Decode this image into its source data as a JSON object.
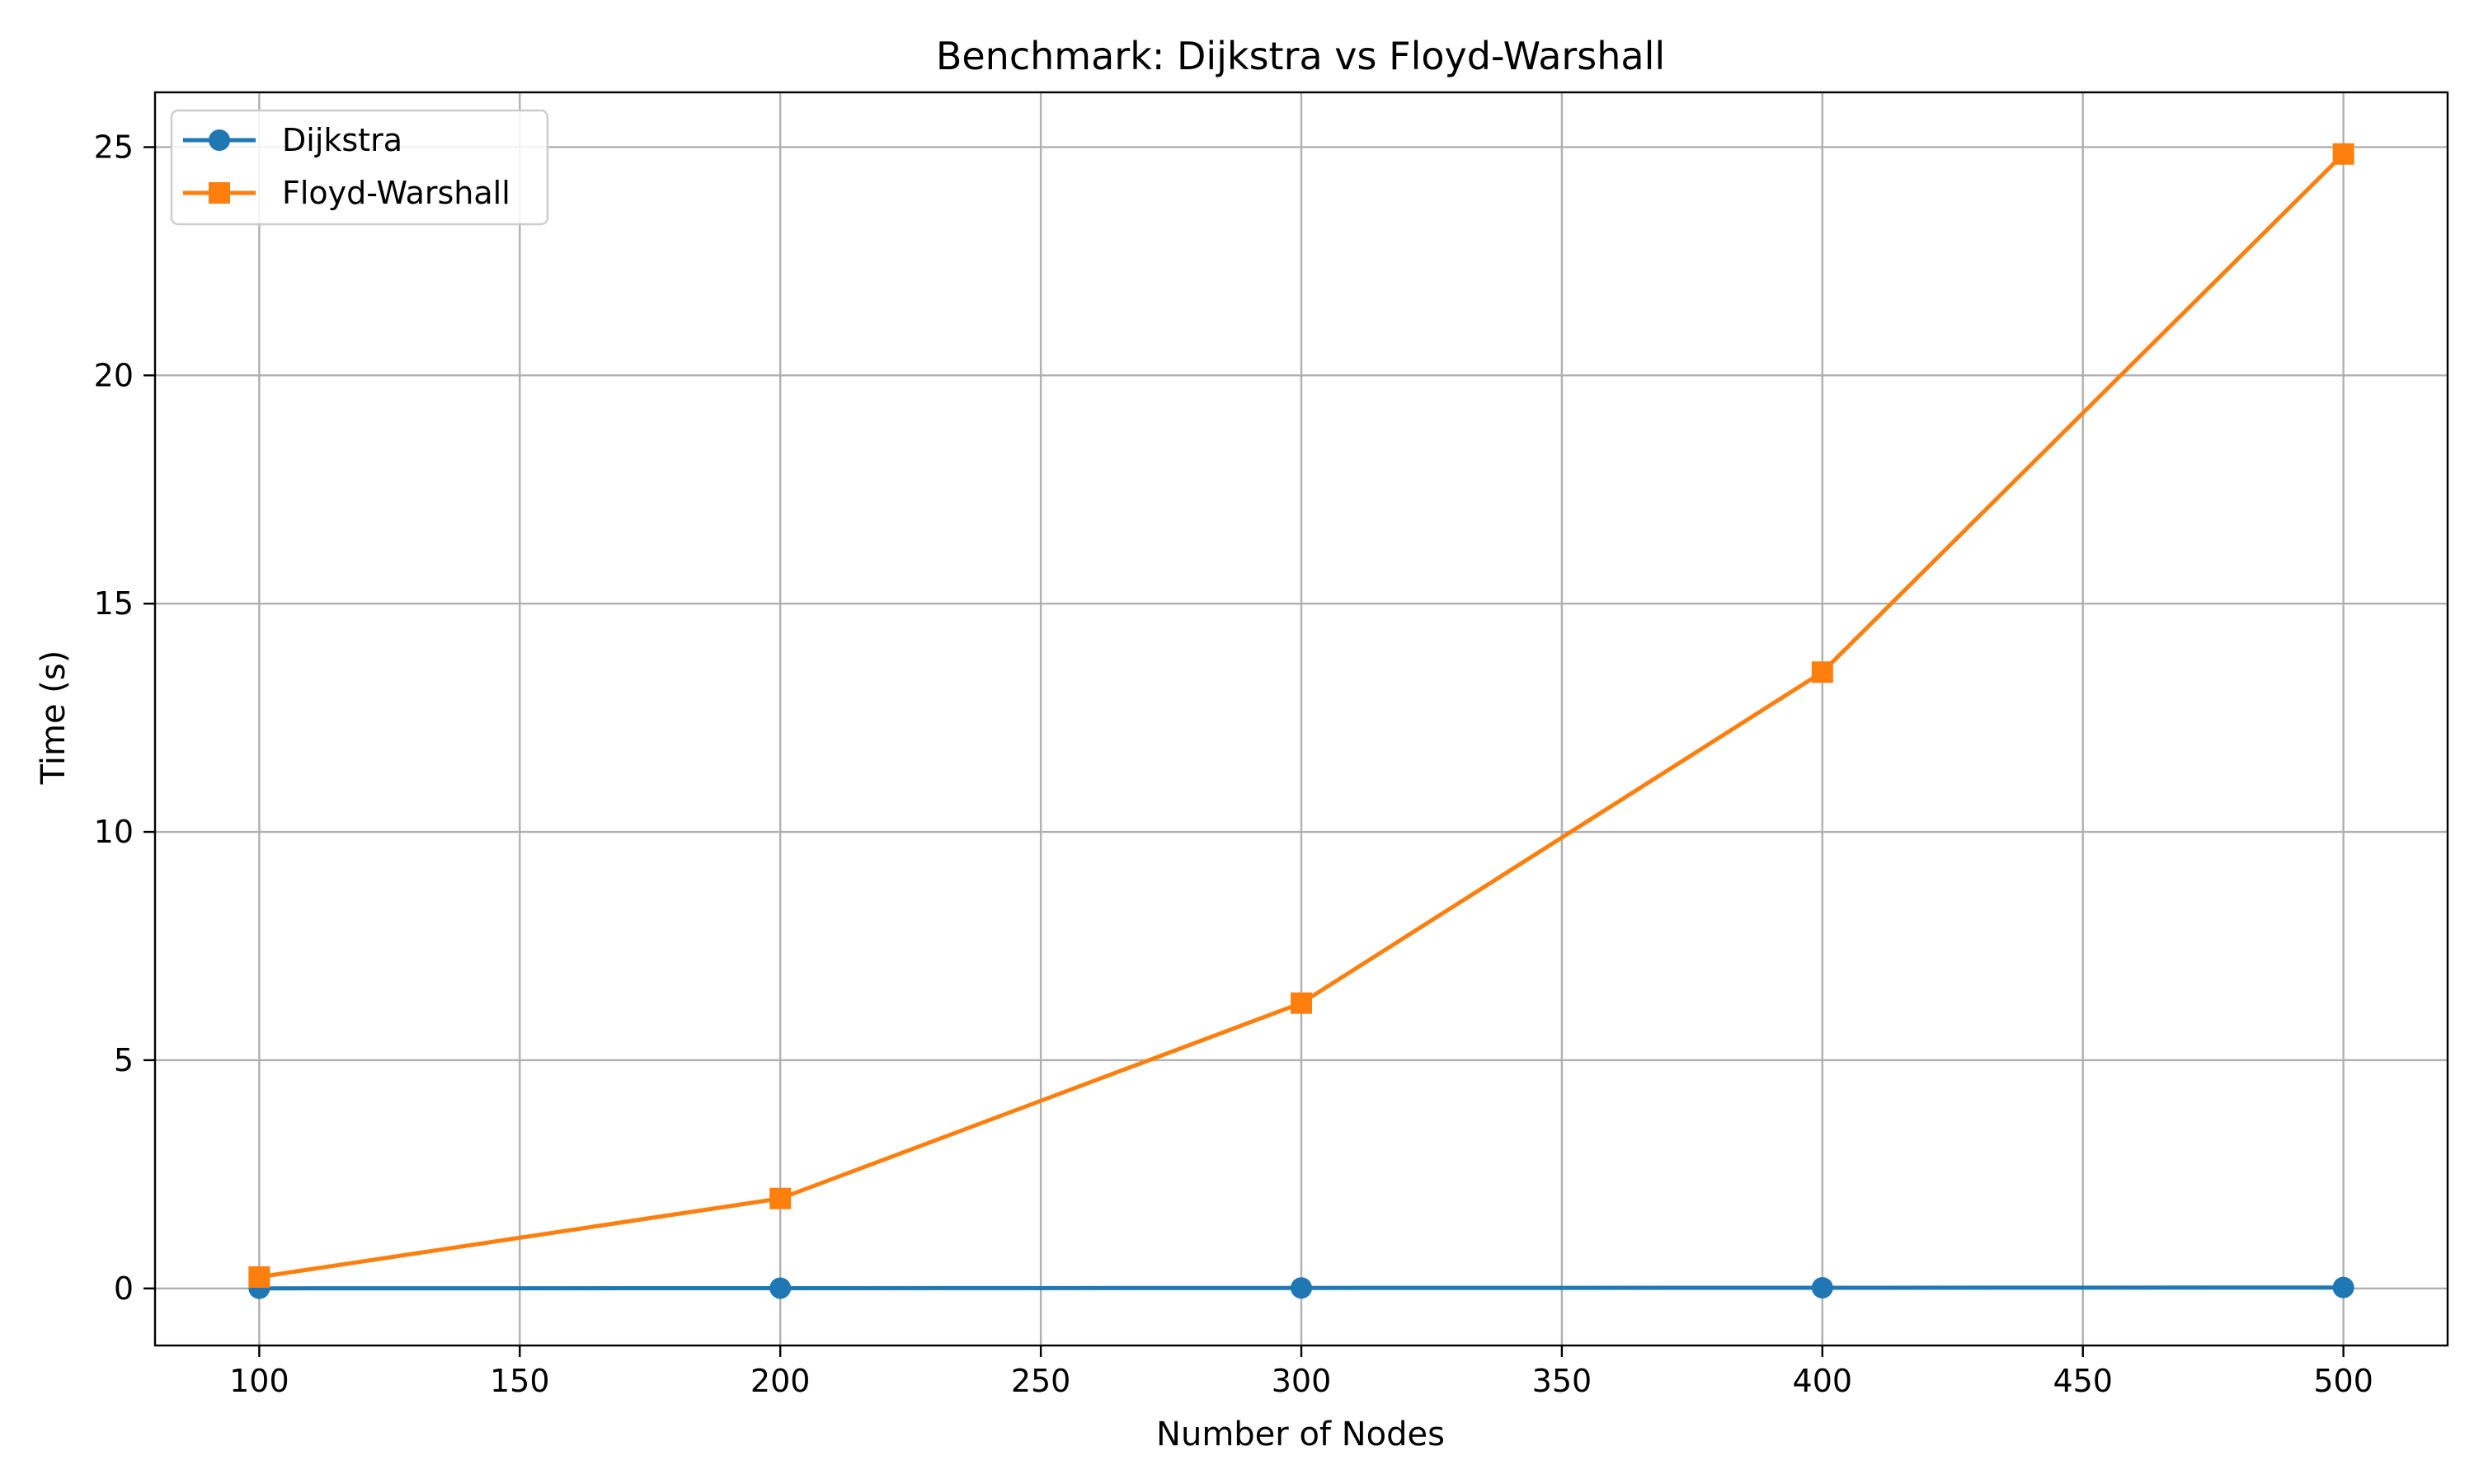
{
  "chart_data": {
    "type": "line",
    "title": "Benchmark: Dijkstra vs Floyd-Warshall",
    "xlabel": "Number of Nodes",
    "ylabel": "Time (s)",
    "x": [
      100,
      200,
      300,
      400,
      500
    ],
    "xlim": [
      80,
      520
    ],
    "ylim": [
      -1.25,
      26.2
    ],
    "xticks": [
      100,
      150,
      200,
      250,
      300,
      350,
      400,
      450,
      500
    ],
    "yticks": [
      0,
      5,
      10,
      15,
      20,
      25
    ],
    "grid": true,
    "legend_position": "top-left",
    "series": [
      {
        "name": "Dijkstra",
        "marker": "circle",
        "color": "#1f77b4",
        "values": [
          0.002,
          0.006,
          0.01,
          0.015,
          0.02
        ]
      },
      {
        "name": "Floyd-Warshall",
        "marker": "square",
        "color": "#ff7f0e",
        "values": [
          0.25,
          1.97,
          6.25,
          13.5,
          24.85
        ]
      }
    ]
  }
}
